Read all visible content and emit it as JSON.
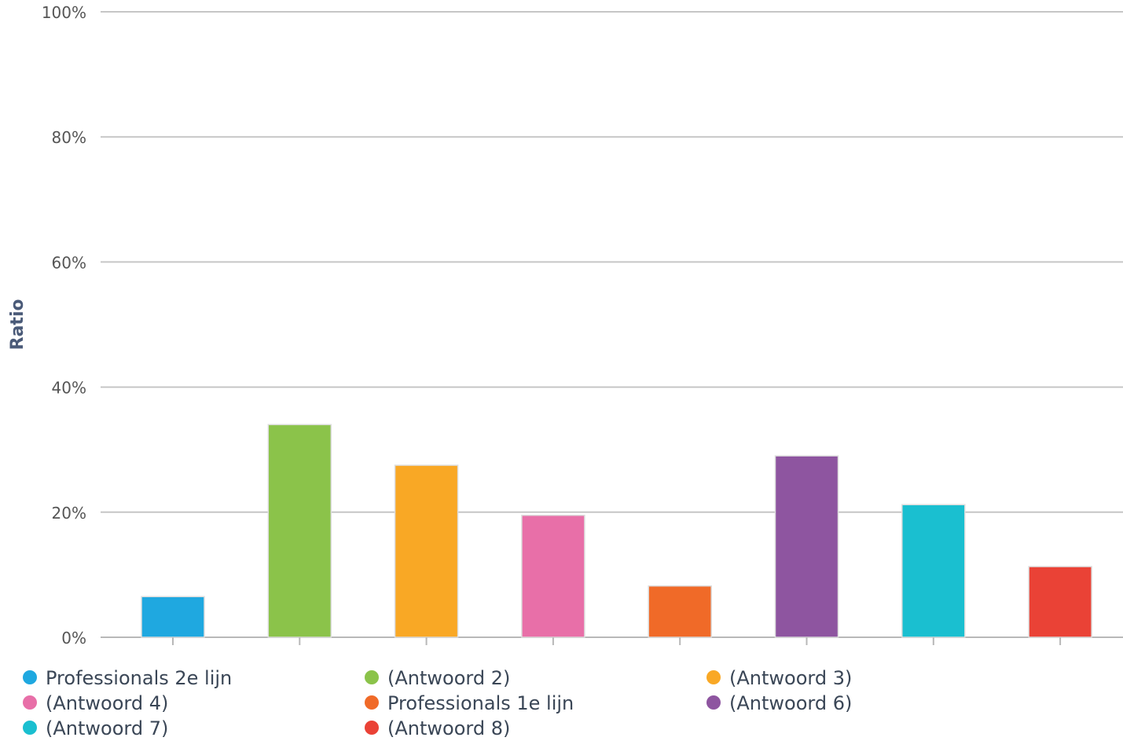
{
  "chart_data": {
    "type": "bar",
    "title": "",
    "xlabel": "",
    "ylabel": "Ratio",
    "ylim": [
      0,
      100
    ],
    "yticks": [
      "0%",
      "20%",
      "40%",
      "60%",
      "80%",
      "100%"
    ],
    "grid": true,
    "legend_position": "bottom",
    "series": [
      {
        "name": "Professionals 2e lijn",
        "value": 6.5,
        "color": "#1fa8e0"
      },
      {
        "name": "(Antwoord 2)",
        "value": 34,
        "color": "#8bc34a"
      },
      {
        "name": "(Antwoord 3)",
        "value": 27.5,
        "color": "#f9a825"
      },
      {
        "name": "(Antwoord 4)",
        "value": 19.5,
        "color": "#e86fa8"
      },
      {
        "name": "Professionals 1e lijn",
        "value": 8.2,
        "color": "#f06a28"
      },
      {
        "name": "(Antwoord 6)",
        "value": 29,
        "color": "#8e55a0"
      },
      {
        "name": "(Antwoord 7)",
        "value": 21.2,
        "color": "#1abfd0"
      },
      {
        "name": "(Antwoord 8)",
        "value": 11.3,
        "color": "#ea4236"
      }
    ]
  }
}
